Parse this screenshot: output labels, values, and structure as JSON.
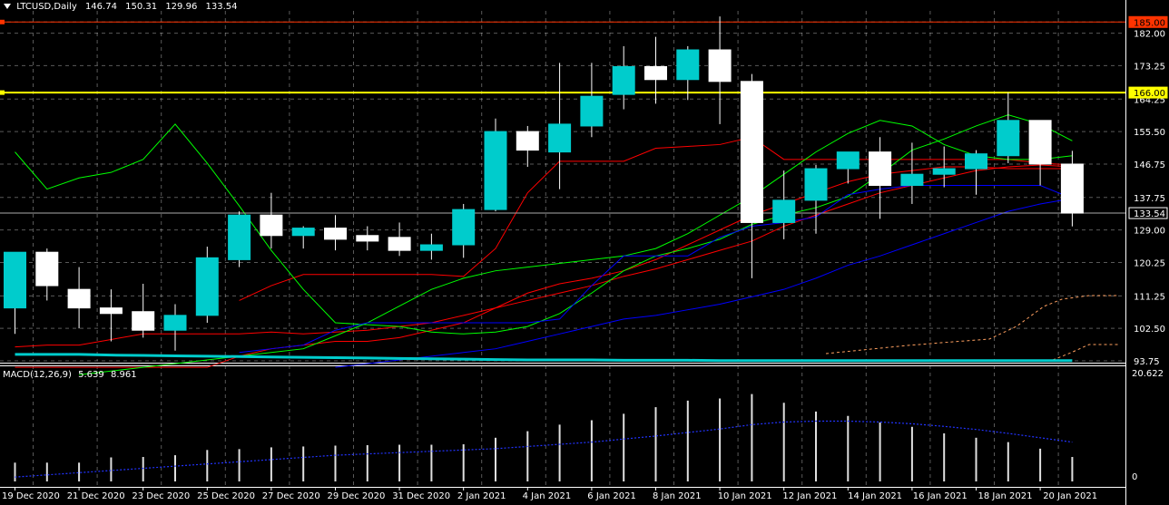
{
  "header": {
    "symbol": "LTCUSD,Daily",
    "open": "146.74",
    "high": "150.31",
    "low": "129.96",
    "close": "133.54"
  },
  "macd_header": {
    "label": "MACD(12,26,9)",
    "main": "5.639",
    "signal": "8.961"
  },
  "colors": {
    "background": "#000000",
    "bull": "#00cccc",
    "bear": "#ffffff",
    "grid": "#ffffff",
    "resistance": "#ff3300",
    "support": "#ffff00",
    "red_line": "#ff0000",
    "green_line": "#00ff00",
    "blue_line": "#0000ff",
    "cyan_line": "#00cccc",
    "orange_dotted": "#ffa060"
  },
  "chart_data": [
    {
      "type": "candlestick",
      "title": "LTCUSD,Daily",
      "ylim": [
        93.75,
        188.0
      ],
      "grid": true,
      "y_ticks": [
        "185.00",
        "182.00",
        "173.25",
        "164.25",
        "155.50",
        "146.75",
        "137.75",
        "129.00",
        "120.25",
        "111.25",
        "102.50",
        "93.75"
      ],
      "price_labels": [
        {
          "value": 185.0,
          "label": "185.00",
          "color": "#ff3300"
        },
        {
          "value": 166.0,
          "label": "166.00",
          "color": "#ffff00"
        },
        {
          "value": 133.54,
          "label": "133.54",
          "color": "#ffffff"
        }
      ],
      "horizontal_lines": [
        {
          "value": 185.0,
          "color": "#ff3300",
          "style": "solid"
        },
        {
          "value": 166.0,
          "color": "#ffff00",
          "style": "solid"
        },
        {
          "value": 133.54,
          "color": "#aaaaaa",
          "style": "solid"
        }
      ],
      "x_labels": [
        "19 Dec 2020",
        "21 Dec 2020",
        "23 Dec 2020",
        "25 Dec 2020",
        "27 Dec 2020",
        "29 Dec 2020",
        "31 Dec 2020",
        "2 Jan 2021",
        "4 Jan 2021",
        "6 Jan 2021",
        "8 Jan 2021",
        "10 Jan 2021",
        "12 Jan 2021",
        "14 Jan 2021",
        "16 Jan 2021",
        "18 Jan 2021",
        "20 Jan 2021"
      ],
      "candles": [
        {
          "o": 108.0,
          "h": 123.0,
          "l": 101.0,
          "c": 123.0
        },
        {
          "o": 123.0,
          "h": 124.0,
          "l": 110.0,
          "c": 114.0
        },
        {
          "o": 113.0,
          "h": 119.0,
          "l": 102.5,
          "c": 108.0
        },
        {
          "o": 108.0,
          "h": 113.0,
          "l": 99.0,
          "c": 106.5
        },
        {
          "o": 107.0,
          "h": 114.5,
          "l": 100.0,
          "c": 102.0
        },
        {
          "o": 102.0,
          "h": 109.0,
          "l": 96.5,
          "c": 106.0
        },
        {
          "o": 106.0,
          "h": 124.5,
          "l": 104.0,
          "c": 121.5
        },
        {
          "o": 121.0,
          "h": 134.0,
          "l": 119.0,
          "c": 133.0
        },
        {
          "o": 133.0,
          "h": 139.0,
          "l": 124.0,
          "c": 127.5
        },
        {
          "o": 127.5,
          "h": 130.0,
          "l": 124.0,
          "c": 129.5
        },
        {
          "o": 129.5,
          "h": 133.0,
          "l": 123.5,
          "c": 126.5
        },
        {
          "o": 127.5,
          "h": 130.0,
          "l": 123.5,
          "c": 126.0
        },
        {
          "o": 127.0,
          "h": 131.0,
          "l": 122.0,
          "c": 123.5
        },
        {
          "o": 123.5,
          "h": 128.0,
          "l": 121.0,
          "c": 125.0
        },
        {
          "o": 125.0,
          "h": 136.0,
          "l": 121.5,
          "c": 134.5
        },
        {
          "o": 134.5,
          "h": 159.0,
          "l": 134.0,
          "c": 155.5
        },
        {
          "o": 155.5,
          "h": 157.0,
          "l": 146.0,
          "c": 150.5
        },
        {
          "o": 150.0,
          "h": 174.0,
          "l": 140.0,
          "c": 157.5
        },
        {
          "o": 157.0,
          "h": 174.0,
          "l": 154.0,
          "c": 165.0
        },
        {
          "o": 165.5,
          "h": 178.5,
          "l": 161.5,
          "c": 173.0
        },
        {
          "o": 173.0,
          "h": 181.0,
          "l": 163.0,
          "c": 169.5
        },
        {
          "o": 169.5,
          "h": 178.5,
          "l": 164.0,
          "c": 177.5
        },
        {
          "o": 177.5,
          "h": 186.5,
          "l": 157.5,
          "c": 169.0
        },
        {
          "o": 169.0,
          "h": 171.0,
          "l": 116.0,
          "c": 131.0
        },
        {
          "o": 131.0,
          "h": 145.0,
          "l": 126.5,
          "c": 137.0
        },
        {
          "o": 137.0,
          "h": 146.5,
          "l": 128.0,
          "c": 145.5
        },
        {
          "o": 145.5,
          "h": 150.0,
          "l": 141.5,
          "c": 150.0
        },
        {
          "o": 150.0,
          "h": 154.0,
          "l": 132.0,
          "c": 141.0
        },
        {
          "o": 141.0,
          "h": 152.5,
          "l": 136.0,
          "c": 144.0
        },
        {
          "o": 144.0,
          "h": 151.5,
          "l": 140.5,
          "c": 145.5
        },
        {
          "o": 145.5,
          "h": 150.5,
          "l": 138.5,
          "c": 149.5
        },
        {
          "o": 149.0,
          "h": 166.0,
          "l": 147.0,
          "c": 158.5
        },
        {
          "o": 158.5,
          "h": 158.5,
          "l": 141.0,
          "c": 146.74
        },
        {
          "o": 146.74,
          "h": 150.31,
          "l": 129.96,
          "c": 133.54
        }
      ],
      "series": [
        {
          "color": "#ff0000",
          "values": [
            97.5,
            98,
            98,
            99.5,
            101,
            101,
            101,
            101,
            101.5,
            101,
            101.5,
            102,
            103,
            104,
            106,
            108,
            110,
            112,
            114,
            116.5,
            118.5,
            121,
            123.5,
            126,
            130,
            133,
            136,
            139,
            141,
            143,
            145,
            146,
            146.5,
            146
          ]
        },
        {
          "color": "#ff0000",
          "values": [
            92,
            92,
            92,
            92,
            92,
            92,
            92,
            95,
            97,
            98,
            99,
            99,
            100,
            102,
            104,
            108,
            112,
            114.5,
            116,
            118,
            121,
            125,
            129,
            133,
            136,
            139,
            142,
            144,
            145,
            146,
            146,
            145.5,
            145.5,
            145.5
          ]
        },
        {
          "color": "#ff0000",
          "values": [
            null,
            null,
            null,
            null,
            null,
            null,
            null,
            110,
            114,
            117,
            117,
            117,
            117,
            117,
            116.5,
            124,
            139,
            147.5,
            147.5,
            147.5,
            151,
            151.5,
            152,
            154,
            148,
            148,
            148,
            148,
            148,
            148,
            148,
            148,
            147,
            146.5
          ]
        },
        {
          "color": "#00ff00",
          "values": [
            150,
            140,
            143,
            144.5,
            148,
            157.5,
            147,
            135.5,
            123.5,
            113,
            104,
            103.5,
            103,
            101.5,
            101,
            101.5,
            103,
            106.5,
            112,
            118,
            122,
            124,
            126.5,
            130.5,
            133,
            135,
            138,
            144,
            150.5,
            153.5,
            157,
            160,
            157.5,
            153
          ]
        },
        {
          "color": "#00ff00",
          "values": [
            null,
            null,
            90,
            91,
            92,
            93,
            94,
            95,
            96,
            97,
            100.5,
            104,
            108.5,
            113,
            116,
            118,
            119,
            120,
            121,
            122,
            124,
            128,
            133,
            138,
            144,
            150,
            155,
            158.5,
            157,
            152,
            149,
            148,
            148,
            149
          ]
        },
        {
          "color": "#0000ff",
          "values": [
            null,
            null,
            null,
            null,
            null,
            null,
            null,
            96,
            97,
            98,
            102,
            104,
            104,
            104,
            104,
            104,
            104,
            105,
            114,
            122,
            122,
            122,
            127,
            130,
            131,
            132.5,
            138.5,
            140,
            141,
            141,
            141,
            141,
            141,
            137.5
          ]
        },
        {
          "color": "#0000ff",
          "values": [
            null,
            null,
            null,
            null,
            null,
            null,
            null,
            null,
            null,
            null,
            92,
            93,
            94,
            95,
            96,
            97,
            99,
            101,
            103,
            105,
            106,
            107.5,
            109,
            111,
            113,
            116,
            119.5,
            122,
            125,
            128,
            131,
            134,
            136,
            137.5
          ]
        },
        {
          "color": "#00cccc",
          "values": [
            95.5,
            95.5,
            95.5,
            95.3,
            95.2,
            95.1,
            95,
            94.9,
            94.8,
            94.7,
            94.6,
            94.5,
            94.4,
            94.3,
            94.2,
            94.1,
            94,
            94,
            94,
            93.9,
            93.9,
            93.9,
            93.8,
            93.8,
            93.8,
            93.8,
            93.8,
            93.8,
            93.8,
            93.8,
            93.8,
            93.8,
            93.8,
            93.8
          ]
        }
      ]
    },
    {
      "type": "bar",
      "title": "MACD(12,26,9)",
      "ylim": [
        0,
        22.0
      ],
      "y_ticks": [
        "20.622",
        "0"
      ],
      "values": [
        4.3,
        4.3,
        4.3,
        5.5,
        5.6,
        6.0,
        7.2,
        7.4,
        7.8,
        8.0,
        8.2,
        8.3,
        8.4,
        8.4,
        8.5,
        10.0,
        11.5,
        13.0,
        14.0,
        15.5,
        17.0,
        18.5,
        19.0,
        20.0,
        18.0,
        16.0,
        15.0,
        13.5,
        12.5,
        11.0,
        10.0,
        9.0,
        7.5,
        5.6
      ],
      "signal": [
        1.0,
        1.5,
        2.0,
        2.5,
        3.0,
        3.5,
        4.0,
        4.5,
        5.0,
        5.5,
        6.0,
        6.3,
        6.6,
        6.9,
        7.2,
        7.5,
        8.0,
        8.5,
        9.0,
        9.7,
        10.4,
        11.2,
        12.0,
        13.0,
        13.6,
        13.8,
        13.8,
        13.6,
        13.2,
        12.6,
        11.9,
        11.0,
        10.0,
        9.0
      ]
    }
  ]
}
